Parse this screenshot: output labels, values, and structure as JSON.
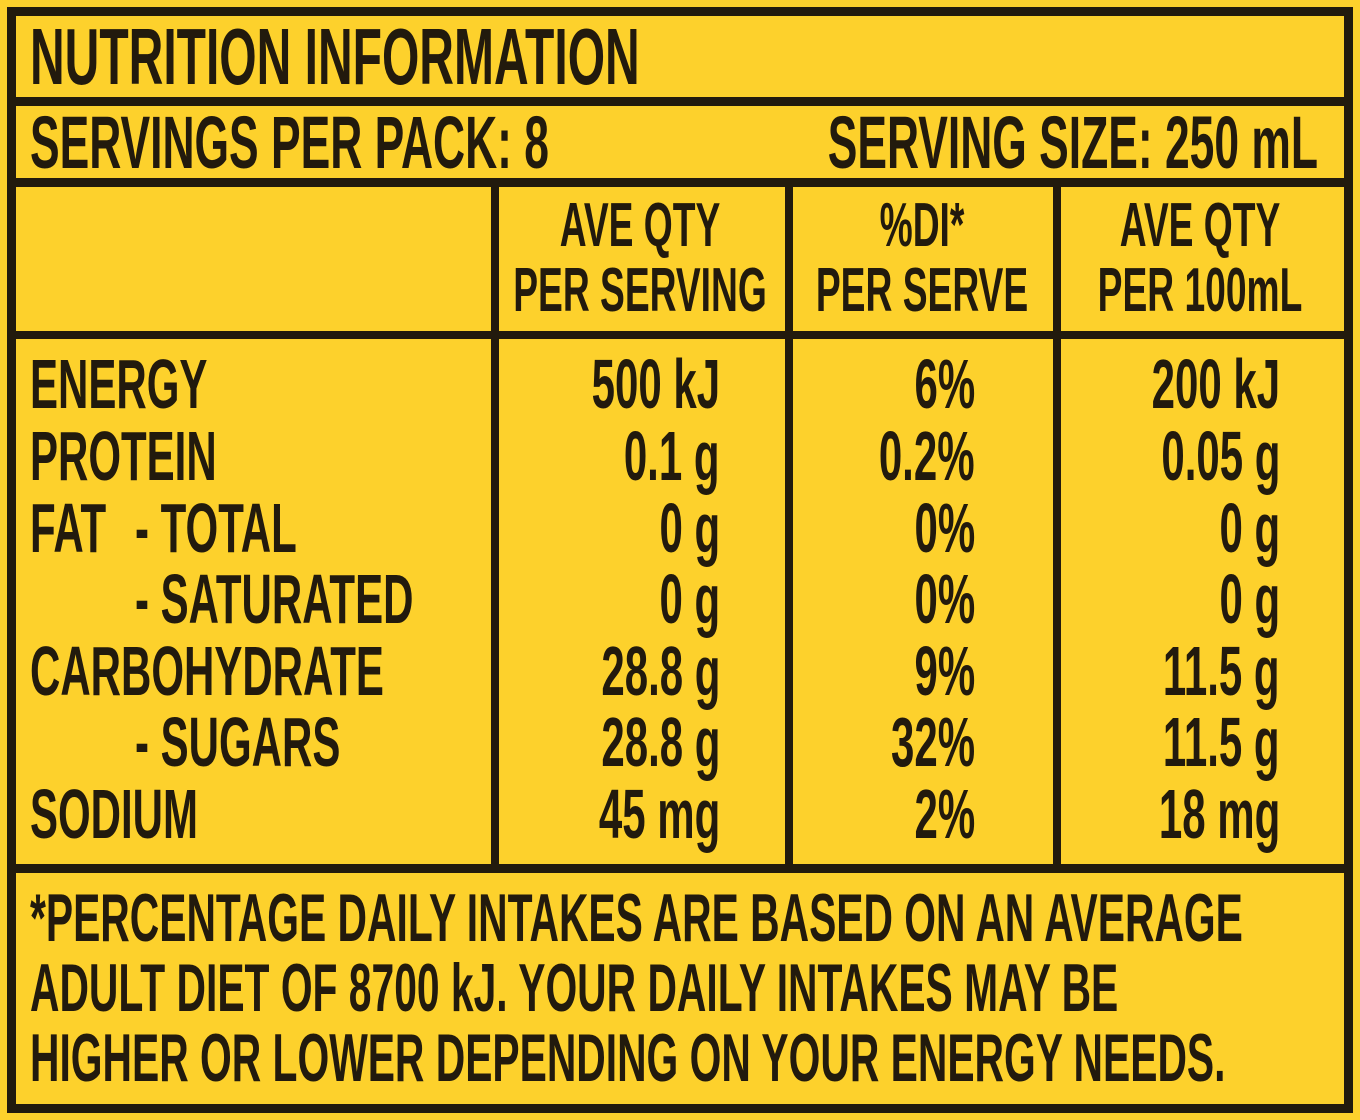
{
  "title": "NUTRITION INFORMATION",
  "servings_per_pack": "SERVINGS PER PACK: 8",
  "serving_size": "SERVING SIZE: 250 mL",
  "columns": [
    {
      "line1": "AVE QTY",
      "line2": "PER SERVING"
    },
    {
      "line1": "%DI*",
      "line2": "PER SERVE"
    },
    {
      "line1": "AVE QTY",
      "line2": "PER 100mL"
    }
  ],
  "rows": [
    {
      "label": "ENERGY",
      "per_serving": "500 kJ",
      "di": "6%",
      "per_100ml": "200 kJ"
    },
    {
      "label": "PROTEIN",
      "per_serving": "0.1 g",
      "di": "0.2%",
      "per_100ml": "0.05 g"
    },
    {
      "label": "FAT",
      "sub": "- TOTAL",
      "per_serving": "0 g",
      "di": "0%",
      "per_100ml": "0 g"
    },
    {
      "sub": "- SATURATED",
      "per_serving": "0 g",
      "di": "0%",
      "per_100ml": "0 g"
    },
    {
      "label": "CARBOHYDRATE",
      "per_serving": "28.8 g",
      "di": "9%",
      "per_100ml": "11.5 g"
    },
    {
      "sub": "- SUGARS",
      "per_serving": "28.8 g",
      "di": "32%",
      "per_100ml": "11.5 g"
    },
    {
      "label": "SODIUM",
      "per_serving": "45 mg",
      "di": "2%",
      "per_100ml": "18 mg"
    }
  ],
  "footnote": [
    "*PERCENTAGE DAILY INTAKES ARE BASED ON AN AVERAGE",
    "ADULT DIET OF 8700 kJ. YOUR DAILY INTAKES MAY BE",
    "HIGHER OR LOWER DEPENDING ON YOUR ENERGY NEEDS."
  ],
  "colors": {
    "background": "#fdd12c",
    "ink": "#221a0d"
  }
}
